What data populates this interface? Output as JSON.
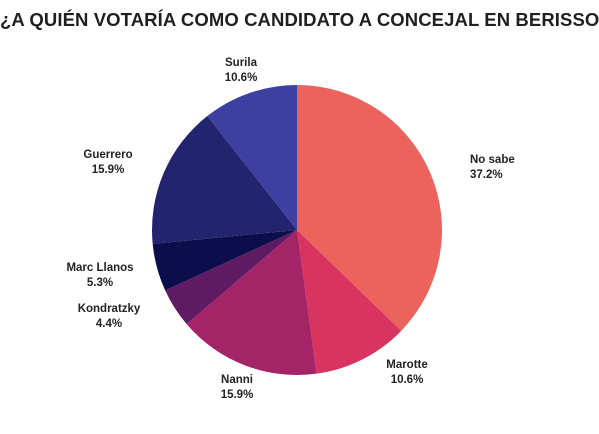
{
  "chart_data": {
    "type": "pie",
    "title": "¿A QUIÉN VOTARÍA COMO CANDIDATO A CONCEJAL EN BERISSO?",
    "start_angle_deg": 0,
    "direction": "clockwise",
    "slices": [
      {
        "label": "No sabe",
        "value": 37.2,
        "value_label": "37.2%",
        "color": "#ec625d"
      },
      {
        "label": "Marotte",
        "value": 10.6,
        "value_label": "10.6%",
        "color": "#d9335f"
      },
      {
        "label": "Nanni",
        "value": 15.9,
        "value_label": "15.9%",
        "color": "#a42468"
      },
      {
        "label": "Kondratzky",
        "value": 4.4,
        "value_label": "4.4%",
        "color": "#5e1a62"
      },
      {
        "label": "Marc Llanos",
        "value": 5.3,
        "value_label": "5.3%",
        "color": "#0c0e4c"
      },
      {
        "label": "Guerrero",
        "value": 15.9,
        "value_label": "15.9%",
        "color": "#23246e"
      },
      {
        "label": "Surila",
        "value": 10.6,
        "value_label": "10.6%",
        "color": "#3d3fa1"
      }
    ]
  }
}
